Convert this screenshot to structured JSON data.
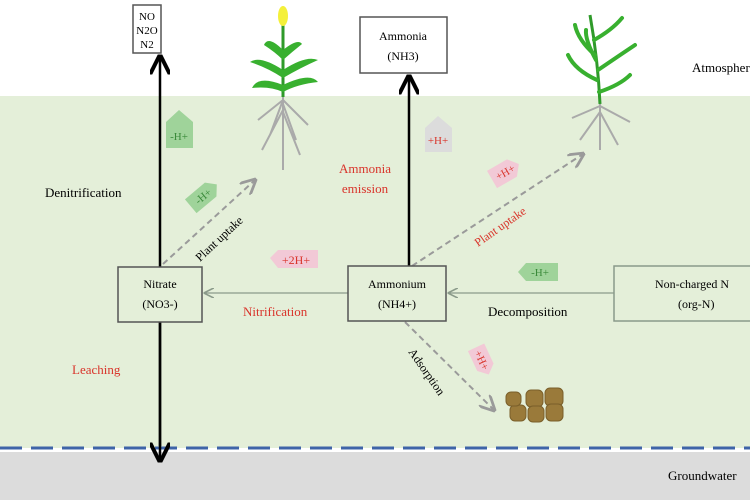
{
  "zones": {
    "atmosphere": "Atmosphere",
    "groundwater": "Groundwater"
  },
  "boxes": {
    "gases": [
      "NO",
      "N2O",
      "N2"
    ],
    "ammonia": [
      "Ammonia",
      "(NH3)"
    ],
    "nitrate": [
      "Nitrate",
      "(NO3-)"
    ],
    "ammonium": [
      "Ammonium",
      "(NH4+)"
    ],
    "organic": [
      "Non-charged N",
      "(org-N)"
    ]
  },
  "processes": {
    "denitrification": "Denitrification",
    "leaching": "Leaching",
    "ammonia_emission": [
      "Ammonia",
      "emission"
    ],
    "nitrification": "Nitrification",
    "decomposition": "Decomposition",
    "plant_uptake_nitrate": "Plant uptake",
    "plant_uptake_ammonium": "Plant uptake",
    "adsorption": "Adsorption"
  },
  "proton_tags": {
    "denitrification": "-H+",
    "nitrate_uptake": "-H+",
    "ammonia_emission": "+H+",
    "ammonium_uptake": "+H+",
    "nitrification": "+2H+",
    "decomposition": "-H+",
    "adsorption": "+H+"
  },
  "colors": {
    "soil": "#e4efd9",
    "groundwater": "#dcdcdc",
    "water_table": "#3f64a8",
    "red_label": "#d9342b",
    "green_tag": "#9fd39a",
    "pink_tag": "#f2c9d6",
    "gray_tag": "#dcdcdc"
  }
}
